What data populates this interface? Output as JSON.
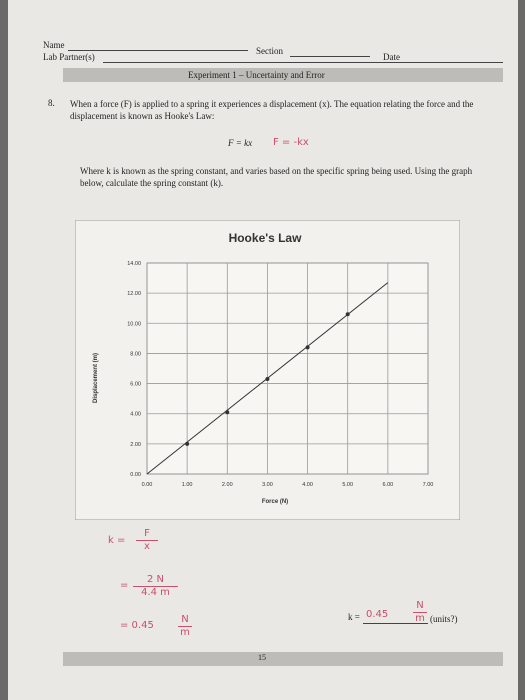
{
  "header": {
    "name": "Name",
    "section": "Section",
    "date": "Date",
    "partners": "Lab Partner(s)",
    "experiment": "Experiment 1 – Uncertainty and Error"
  },
  "question": {
    "number": "8.",
    "intro": "When a force (F) is applied to a spring it experiences a displacement (x). The equation relating the force and the displacement is known as Hooke's Law:",
    "equation": "F = kx",
    "scribble": "F = -kx",
    "text": "Where k is known as the spring constant, and varies based on the specific spring being used. Using the graph below, calculate the spring constant (k)."
  },
  "chart_data": {
    "type": "scatter",
    "title": "Hooke's Law",
    "x_label": "Force (N)",
    "y_label": "Displacement (m)",
    "x": [
      1,
      2,
      3,
      4,
      5
    ],
    "values": [
      2,
      4.1,
      6.3,
      8.4,
      10.6
    ],
    "color": "#333333",
    "fit_line": {
      "x": [
        0,
        6
      ],
      "values": [
        0,
        12.7
      ]
    },
    "xlim": [
      0,
      7
    ],
    "ylim": [
      0,
      14
    ],
    "xticks": [
      {
        "value": 0,
        "label": "0.00"
      },
      {
        "value": 1,
        "label": "1.00"
      },
      {
        "value": 2,
        "label": "2.00"
      },
      {
        "value": 3,
        "label": "3.00"
      },
      {
        "value": 4,
        "label": "4.00"
      },
      {
        "value": 5,
        "label": "5.00"
      },
      {
        "value": 6,
        "label": "6.00"
      },
      {
        "value": 7,
        "label": "7.00"
      }
    ],
    "yticks": [
      {
        "value": 0,
        "label": "0.00"
      },
      {
        "value": 2,
        "label": "2.00"
      },
      {
        "value": 4,
        "label": "4.00"
      },
      {
        "value": 6,
        "label": "6.00"
      },
      {
        "value": 8,
        "label": "8.00"
      },
      {
        "value": 10,
        "label": "10.00"
      },
      {
        "value": 12,
        "label": "12.00"
      },
      {
        "value": 14,
        "label": "14.00"
      }
    ],
    "grid": true
  },
  "work": [
    {
      "left": "k =",
      "num": "F",
      "den": "x"
    },
    {
      "left": "=",
      "num": "2 N",
      "den": "4.4 m"
    },
    {
      "left": "= 0.45",
      "num": "N",
      "den": "m"
    }
  ],
  "answer": {
    "label": "k =",
    "value": "0.45",
    "num": "N",
    "den": "m",
    "note": "(units?)"
  },
  "footer": {
    "page": "15"
  }
}
